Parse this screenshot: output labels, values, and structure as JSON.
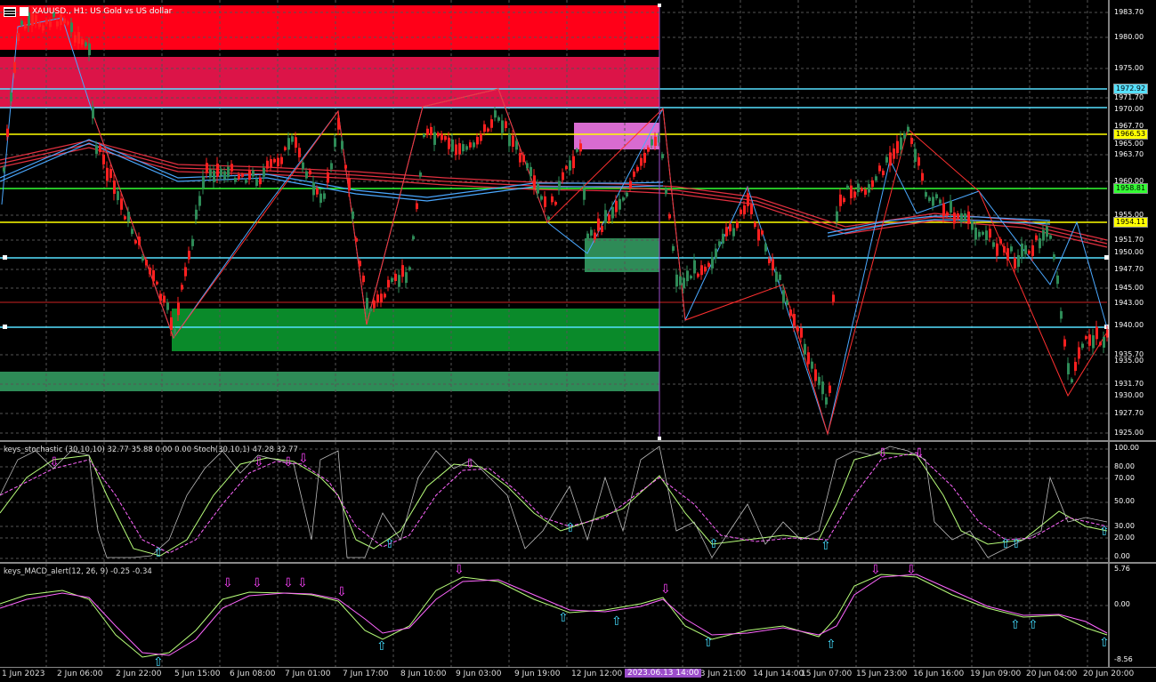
{
  "window": {
    "symbol": "XAUUSD., H1: US Gold vs US dollar"
  },
  "price_axis": {
    "labels": [
      "1983.70",
      "1980.00",
      "1975.00",
      "1971.70",
      "1970.00",
      "1967.70",
      "1965.00",
      "1963.70",
      "1960.00",
      "1955.00",
      "1951.70",
      "1950.00",
      "1947.70",
      "1945.00",
      "1943.00",
      "1940.00",
      "1935.70",
      "1935.00",
      "1931.70",
      "1930.00",
      "1927.70",
      "1925.00"
    ],
    "tags": [
      {
        "text": "1972.92",
        "color": "#55e0ff"
      },
      {
        "text": "1966.53",
        "color": "#ffff00"
      },
      {
        "text": "1958.81",
        "color": "#33ff33"
      },
      {
        "text": "1954.11",
        "color": "#ffff00"
      }
    ]
  },
  "stochastic": {
    "title": "keys_stochastic (30,10,10) 32.77 35.88 0.00 0.00 Stoch(30,10,1) 47.28 32.77",
    "axis": [
      "100.00",
      "80.00",
      "70.00",
      "50.00",
      "30.00",
      "20.00",
      "0.00"
    ]
  },
  "macd": {
    "title": "keys_MACD_alert(12, 26, 9) -0.25 -0.34",
    "axis": [
      "5.76",
      "0.00",
      "-8.56"
    ]
  },
  "time_axis": {
    "labels": [
      "1 Jun 2023",
      "2 Jun 06:00",
      "2 Jun 22:00",
      "5 Jun 15:00",
      "6 Jun 08:00",
      "7 Jun 01:00",
      "7 Jun 17:00",
      "8 Jun 10:00",
      "9 Jun 03:00",
      "9 Jun 19:00",
      "12 Jun 12:00",
      "13 Jun 21:00",
      "14 Jun 14:00",
      "15 Jun 07:00",
      "15 Jun 23:00",
      "16 Jun 16:00",
      "19 Jun 09:00",
      "20 Jun 04:00",
      "20 Jun 20:00"
    ],
    "crosshair_label": "2023.06.13 14:00"
  },
  "colors": {
    "up_candle": "#2e8b57",
    "down_candle": "#ff2020",
    "resistance_zone": "#ff1a3c",
    "support_zone": "#0a8a2a",
    "cyan_line": "#55e0ff",
    "yellow_line": "#ffff00",
    "green_line": "#33ff33"
  }
}
